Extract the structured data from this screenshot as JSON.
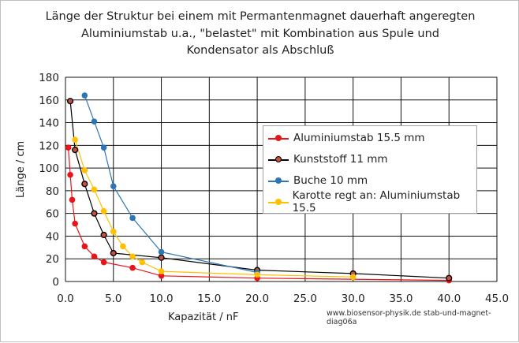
{
  "chart_data": {
    "type": "line",
    "title_lines": [
      "Länge der Struktur bei einem mit Permantenmagnet dauerhaft angeregten",
      "Aluminiumstab u.a., \"belastet\" mit Kombination aus Spule und",
      "Kondensator als Abschluß"
    ],
    "xlabel": "Kapazität /  nF",
    "ylabel": "Länge / cm",
    "xlim": [
      0,
      45
    ],
    "ylim": [
      0,
      180
    ],
    "xticks": [
      "0.0",
      "5.0",
      "10.0",
      "15.0",
      "20.0",
      "25.0",
      "30.0",
      "35.0",
      "40.0",
      "45.0"
    ],
    "yticks": [
      "0",
      "20",
      "40",
      "60",
      "80",
      "100",
      "120",
      "140",
      "160",
      "180"
    ],
    "grid": true,
    "legend_position": "right",
    "series": [
      {
        "name": "Aluminiumstab 15.5 mm",
        "color": "#e8141a",
        "edge": "#e8141a",
        "x": [
          0.3,
          0.5,
          0.7,
          1.0,
          2.0,
          3.0,
          4.0,
          7.0,
          10.0,
          20.0,
          40.0
        ],
        "y": [
          118,
          94,
          72,
          51,
          31,
          22,
          17,
          12,
          5,
          3,
          1
        ]
      },
      {
        "name": "Kunststoff 11 mm",
        "color": "#000000",
        "edge": "#000000",
        "fill": "#c8503c",
        "x": [
          0.5,
          1.0,
          2.0,
          3.0,
          4.0,
          5.0,
          10.0,
          20.0,
          30.0,
          40.0
        ],
        "y": [
          159,
          116,
          86,
          60,
          41,
          25,
          21,
          10,
          7,
          3
        ]
      },
      {
        "name": "Buche 10 mm",
        "color": "#2e75b6",
        "edge": "#2e75b6",
        "x": [
          2.0,
          3.0,
          4.0,
          5.0,
          7.0,
          10.0,
          20.0
        ],
        "y": [
          164,
          141,
          118,
          84,
          56,
          26,
          8
        ]
      },
      {
        "name": "Karotte regt an:  Aluminiumstab 15.5",
        "color": "#ffc000",
        "edge": "#ffc000",
        "x": [
          1.0,
          2.0,
          3.0,
          4.0,
          5.0,
          6.0,
          7.0,
          8.0,
          10.0,
          20.0,
          30.0
        ],
        "y": [
          125,
          98,
          81,
          62,
          44,
          31,
          22,
          17,
          9,
          6,
          4
        ]
      }
    ]
  },
  "watermark": "www.biosensor-physik.de  stab-und-magnet-diag06a"
}
